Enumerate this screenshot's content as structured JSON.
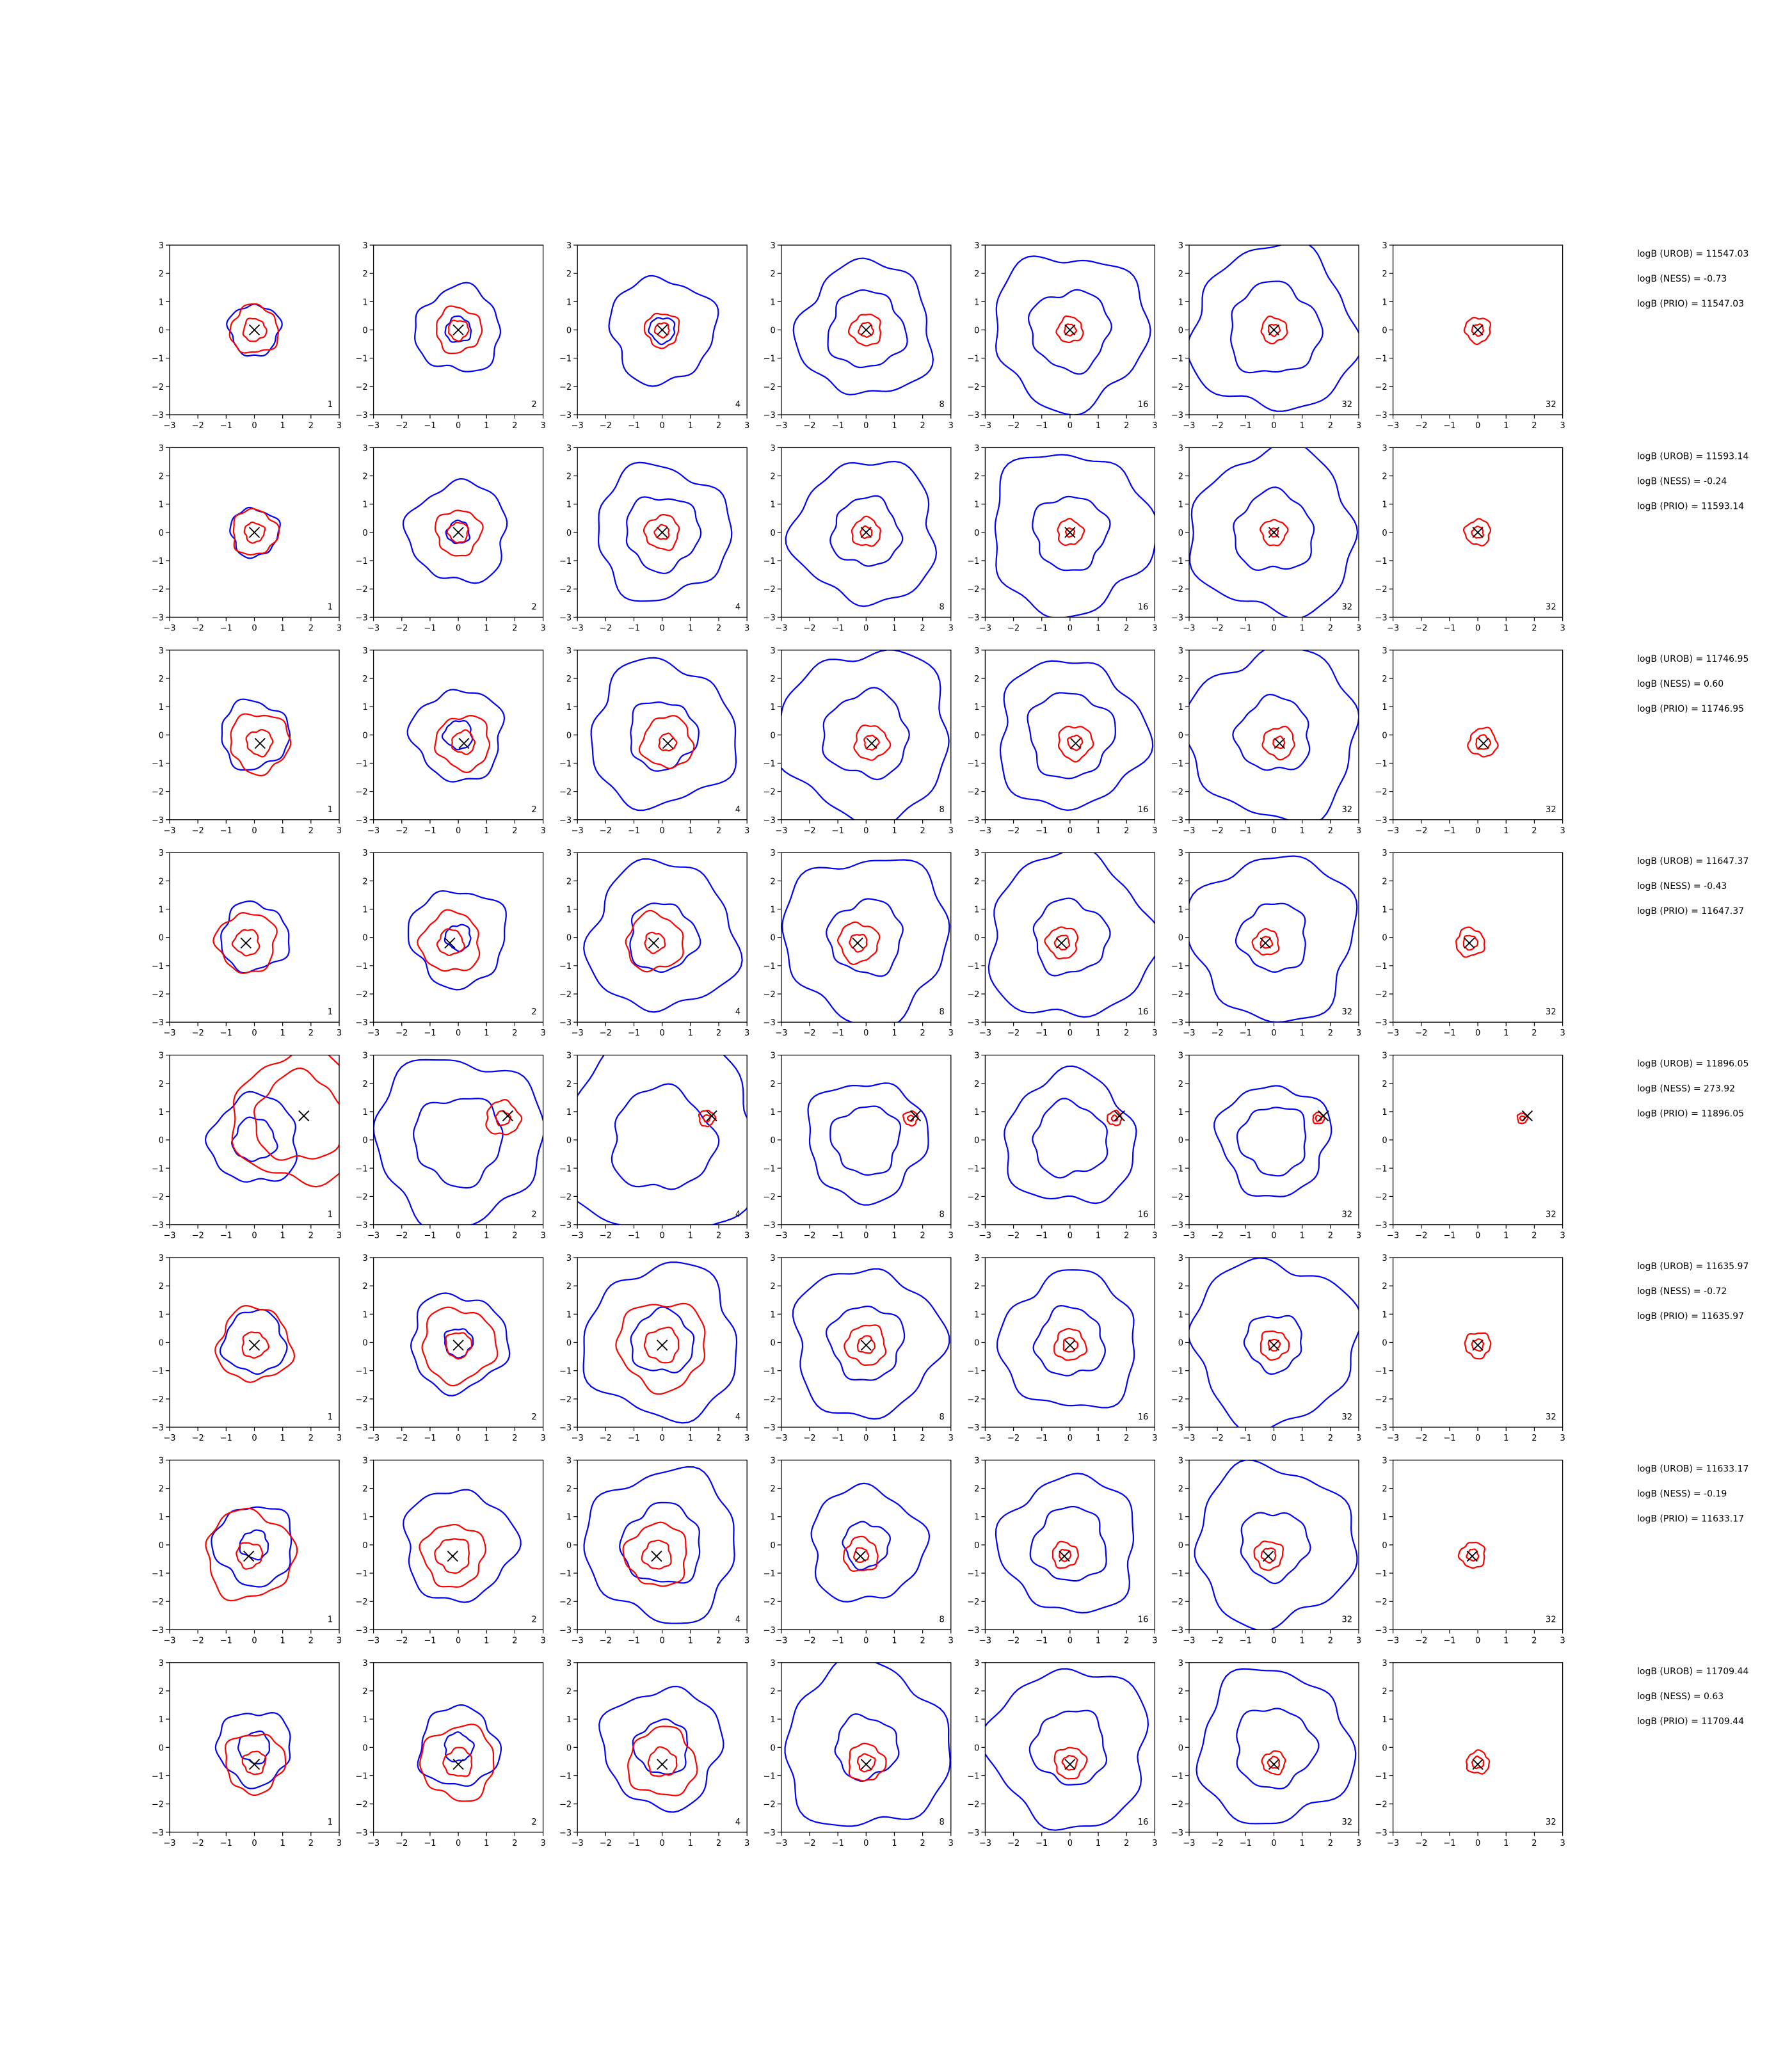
{
  "figure": {
    "colors": {
      "blue": "#0000ff",
      "red": "#ff0000",
      "marker": "#000000"
    }
  },
  "chart_data": {
    "type": "contour-grid",
    "rows": 8,
    "cols": 7,
    "xlim": [
      -3,
      3
    ],
    "ylim": [
      -3,
      3
    ],
    "ticks": [
      -3,
      -2,
      -1,
      0,
      1,
      2,
      3
    ],
    "tick_labels": [
      "−3",
      "−2",
      "−1",
      "0",
      "1",
      "2",
      "3"
    ],
    "column_labels": [
      "1",
      "2",
      "4",
      "8",
      "16",
      "32",
      "32"
    ],
    "rows_data": [
      {
        "marker": [
          0.0,
          0.0
        ],
        "annotations": [
          "logB (UROB) = 11547.03",
          "logB (NESS) = -0.73",
          "logB (PRIO) = 11547.03"
        ],
        "blue": [
          [
            0.9
          ],
          [
            0.45,
            1.5
          ],
          [
            0.45,
            1.85
          ],
          [
            1.35,
            2.35
          ],
          [
            1.4,
            2.7
          ],
          [
            1.6,
            2.9
          ],
          []
        ],
        "red": [
          [
            0.4,
            0.85
          ],
          [
            0.35,
            0.8
          ],
          [
            0.25,
            0.6
          ],
          [
            0.25,
            0.55
          ],
          [
            0.2,
            0.45
          ],
          [
            0.2,
            0.45
          ],
          [
            0.2,
            0.45
          ]
        ]
      },
      {
        "marker": [
          0.0,
          0.0
        ],
        "annotations": [
          "logB (UROB) = 11593.14",
          "logB (NESS) = -0.24",
          "logB (PRIO) = 11593.14"
        ],
        "blue": [
          [
            0.85
          ],
          [
            0.4,
            1.75
          ],
          [
            1.3,
            2.35
          ],
          [
            1.2,
            2.5
          ],
          [
            1.3,
            2.85
          ],
          [
            1.4,
            2.9
          ],
          []
        ],
        "red": [
          [
            0.35,
            0.8
          ],
          [
            0.35,
            0.8
          ],
          [
            0.25,
            0.6
          ],
          [
            0.2,
            0.5
          ],
          [
            0.15,
            0.45
          ],
          [
            0.15,
            0.45
          ],
          [
            0.2,
            0.45
          ]
        ]
      },
      {
        "marker": [
          0.2,
          -0.3
        ],
        "annotations": [
          "logB (UROB) = 11746.95",
          "logB (NESS) = 0.60",
          "logB (PRIO) = 11746.95"
        ],
        "blue": [
          [
            1.2
          ],
          [
            0.5,
            1.6
          ],
          [
            1.2,
            2.55
          ],
          [
            1.5,
            3.0
          ],
          [
            1.5,
            2.6
          ],
          [
            1.3,
            3.0
          ],
          []
        ],
        "red": [
          [
            0.45,
            1.05
          ],
          [
            0.4,
            0.95
          ],
          [
            0.3,
            0.9
          ],
          [
            0.25,
            0.6
          ],
          [
            0.25,
            0.6
          ],
          [
            0.2,
            0.55
          ],
          [
            0.25,
            0.5
          ]
        ]
      },
      {
        "marker": [
          -0.3,
          -0.2
        ],
        "annotations": [
          "logB (UROB) = 11647.37",
          "logB (NESS) = -0.43",
          "logB (PRIO) = 11647.37"
        ],
        "blue": [
          [
            1.2
          ],
          [
            0.45,
            1.7
          ],
          [
            1.2,
            2.6
          ],
          [
            1.3,
            2.9
          ],
          [
            1.3,
            2.9
          ],
          [
            1.2,
            2.9
          ],
          []
        ],
        "red": [
          [
            0.45,
            1.05
          ],
          [
            0.45,
            1.05
          ],
          [
            0.35,
            1.0
          ],
          [
            0.3,
            0.7
          ],
          [
            0.25,
            0.55
          ],
          [
            0.2,
            0.45
          ],
          [
            0.25,
            0.5
          ]
        ]
      },
      {
        "marker": [
          1.75,
          0.85
        ],
        "annotations": [
          "logB (UROB) = 11896.05",
          "logB (NESS) = 273.92",
          "logB (PRIO) = 11896.05"
        ],
        "blue": [
          [
            0.75,
            1.55
          ],
          [
            1.55,
            2.95
          ],
          [
            1.8,
            3.6
          ],
          [
            1.2,
            2.1
          ],
          [
            1.3,
            2.3
          ],
          [
            1.2,
            1.95
          ],
          []
        ],
        "red": [
          [
            1.55,
            2.3
          ],
          [
            0.25,
            0.6
          ],
          [
            0.12,
            0.28
          ],
          [
            0.1,
            0.25
          ],
          [
            0.1,
            0.25
          ],
          [
            0.1,
            0.2
          ],
          [
            0.08,
            0.18
          ]
        ]
      },
      {
        "marker": [
          0.0,
          -0.1
        ],
        "annotations": [
          "logB (UROB) = 11635.97",
          "logB (NESS) = -0.72",
          "logB (PRIO) = 11635.97"
        ],
        "blue": [
          [
            1.1
          ],
          [
            0.5,
            1.7
          ],
          [
            1.1,
            2.7
          ],
          [
            1.3,
            2.6
          ],
          [
            1.2,
            2.4
          ],
          [
            1.0,
            2.9
          ],
          []
        ],
        "red": [
          [
            0.45,
            1.3
          ],
          [
            0.45,
            1.3
          ],
          [
            0.6,
            1.55
          ],
          [
            0.3,
            0.7
          ],
          [
            0.25,
            0.55
          ],
          [
            0.2,
            0.5
          ],
          [
            0.2,
            0.45
          ]
        ]
      },
      {
        "marker": [
          -0.2,
          -0.4
        ],
        "annotations": [
          "logB (UROB) = 11633.17",
          "logB (NESS) = -0.19",
          "logB (PRIO) = 11633.17"
        ],
        "blue": [
          [
            0.5,
            1.4
          ],
          [
            1.95
          ],
          [
            1.4,
            2.65
          ],
          [
            0.8,
            2.0
          ],
          [
            1.3,
            2.4
          ],
          [
            1.2,
            2.8
          ],
          []
        ],
        "red": [
          [
            0.45,
            1.55
          ],
          [
            0.6,
            1.1
          ],
          [
            0.5,
            1.1
          ],
          [
            0.25,
            0.6
          ],
          [
            0.2,
            0.45
          ],
          [
            0.25,
            0.5
          ],
          [
            0.2,
            0.45
          ]
        ]
      },
      {
        "marker": [
          0.0,
          -0.6
        ],
        "annotations": [
          "logB (UROB) = 11709.44",
          "logB (NESS) = 0.63",
          "logB (PRIO) = 11709.44"
        ],
        "blue": [
          [
            0.55,
            1.3
          ],
          [
            0.5,
            1.4
          ],
          [
            0.95,
            2.1
          ],
          [
            1.1,
            2.9
          ],
          [
            1.3,
            2.8
          ],
          [
            1.4,
            2.7
          ],
          []
        ],
        "red": [
          [
            0.4,
            1.05
          ],
          [
            0.5,
            1.3
          ],
          [
            0.5,
            1.2
          ],
          [
            0.3,
            0.65
          ],
          [
            0.25,
            0.55
          ],
          [
            0.2,
            0.4
          ],
          [
            0.2,
            0.4
          ]
        ]
      }
    ]
  }
}
